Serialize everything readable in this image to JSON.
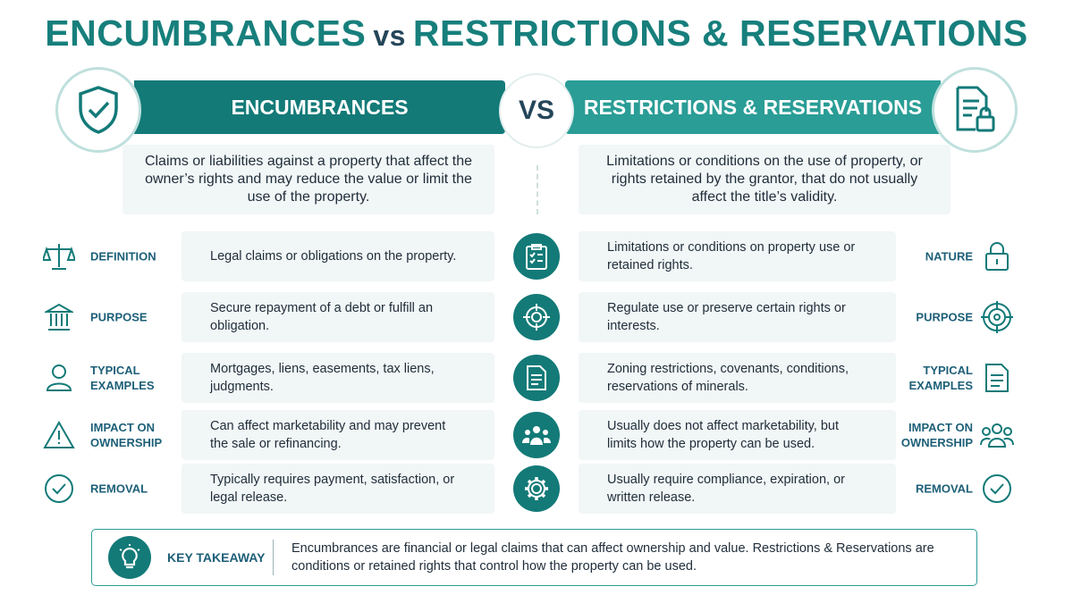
{
  "title": {
    "left": "ENCUMBRANCES",
    "vs": "vs",
    "right": "RESTRICTIONS & RESERVATIONS"
  },
  "left": {
    "heading": "ENCUMBRANCES",
    "description": "Claims or liabilities against a property that affect the owner’s rights and may reduce the value or limit the use of the property."
  },
  "center": "VS",
  "right": {
    "heading": "RESTRICTIONS & RESERVATIONS",
    "description": "Limitations or conditions on the use of property, or rights retained by the grantor, that do not usually affect the title’s validity."
  },
  "rows": [
    {
      "left_label": "DEFINITION",
      "left_text": "Legal claims or obligations on the property.",
      "right_text": "Limitations or conditions on property use or retained rights.",
      "right_label": "NATURE"
    },
    {
      "left_label": "PURPOSE",
      "left_text": "Secure repayment of a debt or fulfill an obligation.",
      "right_text": "Regulate use or preserve certain rights or interests.",
      "right_label": "PURPOSE"
    },
    {
      "left_label": "TYPICAL EXAMPLES",
      "left_text": "Mortgages, liens, easements, tax liens, judgments.",
      "right_text": "Zoning restrictions, covenants, conditions, reservations of minerals.",
      "right_label": "TYPICAL EXAMPLES"
    },
    {
      "left_label": "IMPACT ON OWNERSHIP",
      "left_text": "Can affect marketability and may prevent the sale or refinancing.",
      "right_text": "Usually does not affect marketability, but limits how the property can be used.",
      "right_label": "IMPACT ON OWNERSHIP"
    },
    {
      "left_label": "REMOVAL",
      "left_text": "Typically requires payment, satisfaction, or legal release.",
      "right_text": "Usually require compliance, expiration, or written release.",
      "right_label": "REMOVAL"
    }
  ],
  "takeaway": {
    "label": "KEY TAKEAWAY",
    "text": "Encumbrances are financial or legal claims that can affect ownership and value. Restrictions & Reservations are conditions or retained rights that control how the property can be used."
  }
}
